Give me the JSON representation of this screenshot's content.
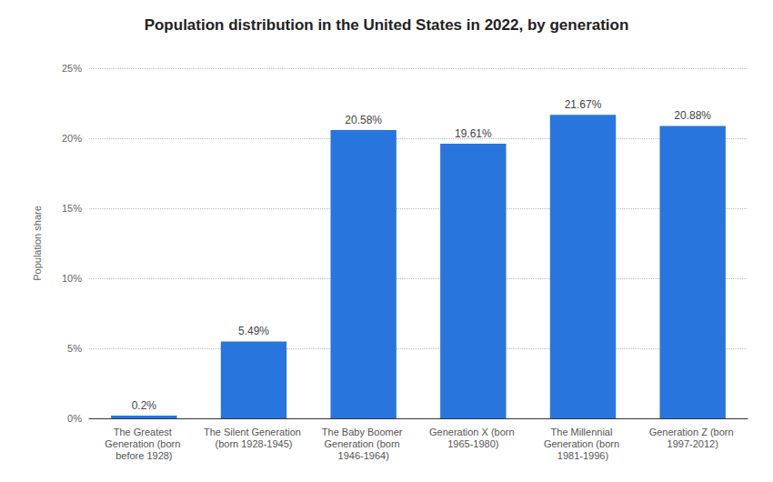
{
  "chart_data": {
    "type": "bar",
    "title": "Population distribution in the United States in 2022, by generation",
    "y_label": "Population share",
    "categories": [
      "The Greatest Generation (born before 1928)",
      "The Silent Generation (born 1928-1945)",
      "The Baby Boomer Generation (born 1946-1964)",
      "Generation X (born 1965-1980)",
      "The Millennial Generation (born 1981-1996)",
      "Generation Z (born 1997-2012)"
    ],
    "values": [
      0.2,
      5.49,
      20.58,
      19.61,
      21.67,
      20.88
    ],
    "value_labels": [
      "0.2%",
      "5.49%",
      "20.58%",
      "19.61%",
      "21.67%",
      "20.88%"
    ],
    "data_labels": true,
    "color": "#2876dd",
    "ylim": [
      0,
      25
    ],
    "yticks": [
      {
        "value": 0,
        "label": "0%"
      },
      {
        "value": 5,
        "label": "5%"
      },
      {
        "value": 10,
        "label": "10%"
      },
      {
        "value": 15,
        "label": "15%"
      },
      {
        "value": 20,
        "label": "20%"
      },
      {
        "value": 25,
        "label": "25%"
      }
    ],
    "grid": true
  }
}
